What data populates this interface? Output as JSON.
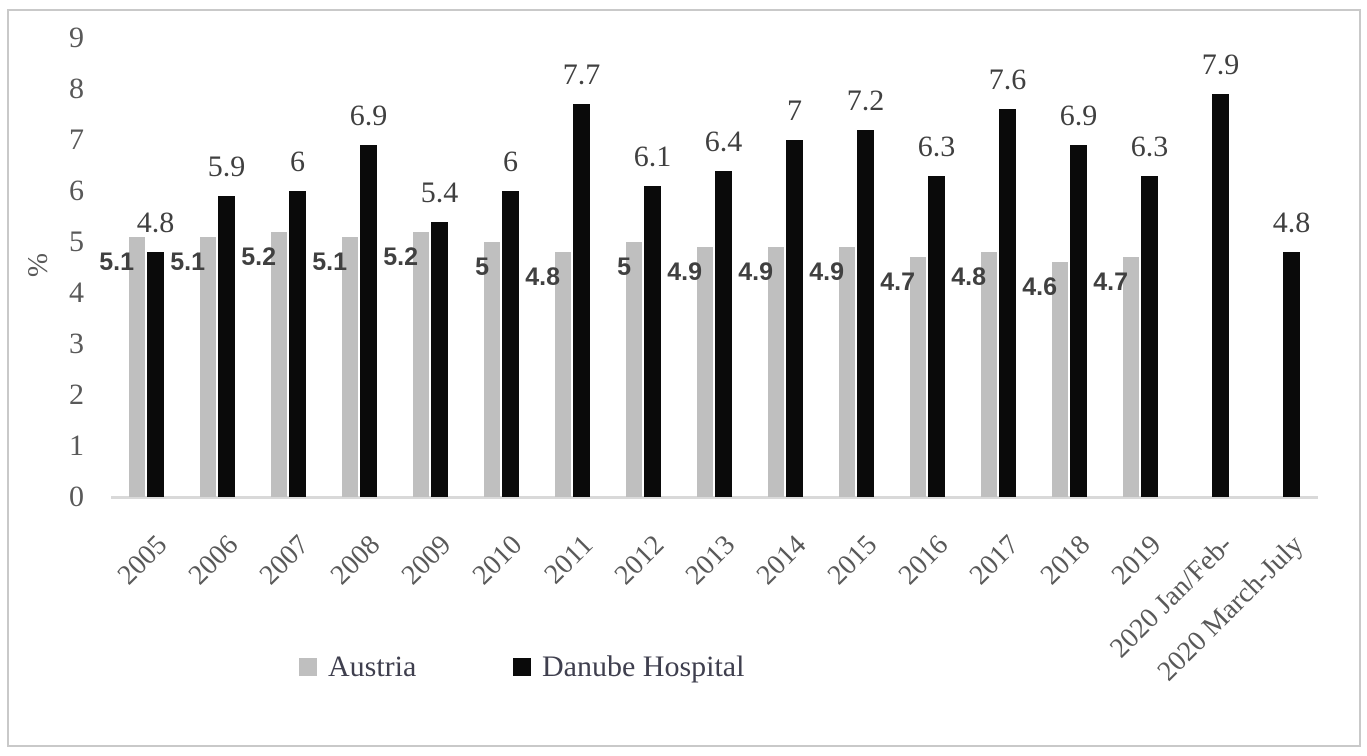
{
  "figure": {
    "ylabel": "%"
  },
  "chart_data": {
    "type": "bar",
    "title": "",
    "xlabel": "",
    "ylabel": "%",
    "ylim": [
      0,
      9
    ],
    "yticks": [
      0,
      1,
      2,
      3,
      4,
      5,
      6,
      7,
      8,
      9
    ],
    "grid": false,
    "legend_position": "bottom",
    "categories": [
      "2005",
      "2006",
      "2007",
      "2008",
      "2009",
      "2010",
      "2011",
      "2012",
      "2013",
      "2014",
      "2015",
      "2016",
      "2017",
      "2018",
      "2019",
      "2020 Jan/Feb-",
      "2020 March-July"
    ],
    "series": [
      {
        "name": "Austria",
        "color": "#bfbfbf",
        "values": [
          5.1,
          5.1,
          5.2,
          5.1,
          5.2,
          5,
          4.8,
          5,
          4.9,
          4.9,
          4.9,
          4.7,
          4.8,
          4.6,
          4.7,
          null,
          null
        ]
      },
      {
        "name": "Danube Hospital",
        "color": "#0a0a0a",
        "values": [
          4.8,
          5.9,
          6,
          6.9,
          5.4,
          6,
          7.7,
          6.1,
          6.4,
          7,
          7.2,
          6.3,
          7.6,
          6.9,
          6.3,
          7.9,
          4.8
        ]
      }
    ],
    "colors": {
      "axis_line": "#d9d9d9",
      "tick_text": "#595959",
      "data_label": "#404040",
      "legend_text": "#3f3f4e",
      "border": "#c9c9c9"
    }
  }
}
